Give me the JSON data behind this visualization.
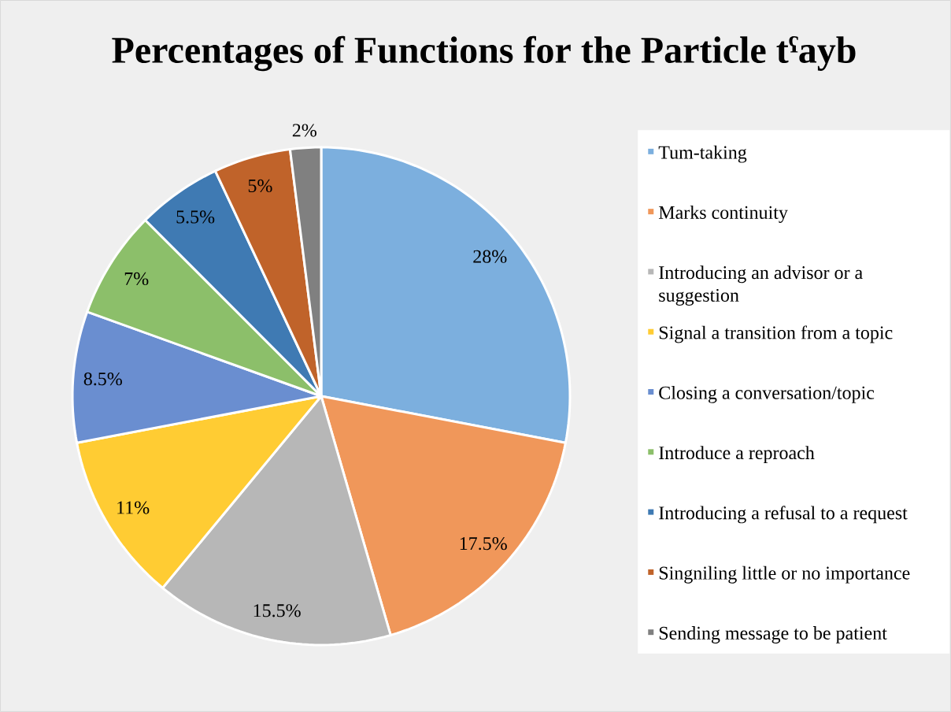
{
  "chart_data": {
    "type": "pie",
    "title": "Percentages of Functions for the Particle tˁayb",
    "categories": [
      "Tum-taking",
      "Marks continuity",
      "Introducing an advisor or a suggestion",
      "Signal a transition from a topic",
      "Closing a conversation/topic",
      "Introduce a reproach",
      "Introducing a refusal to a request",
      "Singniling little or no importance",
      "Sending message to be patient"
    ],
    "values": [
      28,
      17.5,
      15.5,
      11,
      8.5,
      7,
      5.5,
      5,
      2
    ],
    "colors": [
      "#7cafde",
      "#f0975a",
      "#b7b7b7",
      "#ffcc33",
      "#6a8ed0",
      "#8cbf6a",
      "#3f7ab3",
      "#c0632a",
      "#808080"
    ],
    "value_labels": [
      "28%",
      "17.5%",
      "15.5%",
      "11%",
      "8.5%",
      "7%",
      "5.5%",
      "5%",
      "2%"
    ],
    "legend": "right"
  }
}
